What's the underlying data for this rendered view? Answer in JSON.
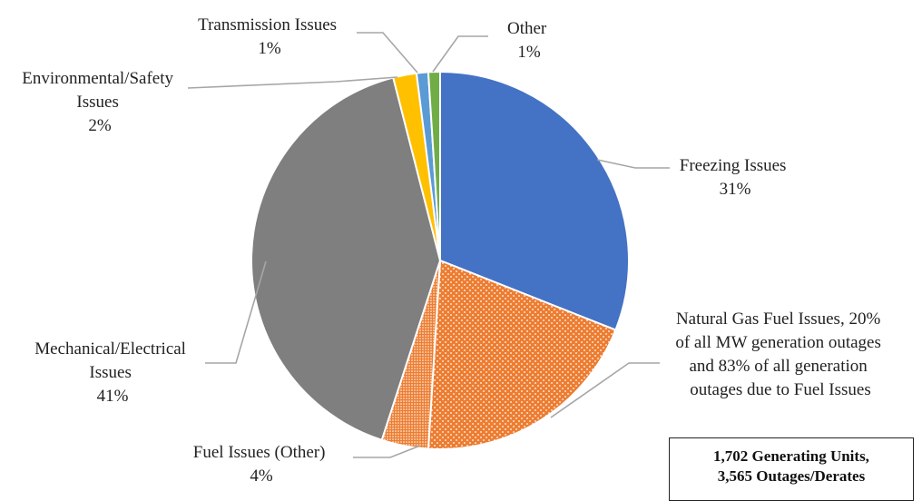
{
  "chart_data": {
    "type": "pie",
    "title": "",
    "start_angle": "12 o'clock, clockwise",
    "slices": [
      {
        "label": "Freezing Issues",
        "percent_label": "31%",
        "value": 31,
        "color": "#4472C4",
        "pattern": "solid"
      },
      {
        "label": "Natural Gas Fuel Issues, 20% of all MW generation outages and 83% of all generation outages due to Fuel Issues",
        "percent_label": "",
        "value": 20,
        "color": "#ED7D31",
        "pattern": "dotted"
      },
      {
        "label": "Fuel Issues (Other)",
        "percent_label": "4%",
        "value": 4,
        "color": "#ED7D31",
        "pattern": "dense-dotted"
      },
      {
        "label": "Mechanical/Electrical Issues",
        "percent_label": "41%",
        "value": 41,
        "color": "#7F7F7F",
        "pattern": "solid"
      },
      {
        "label": "Environmental/Safety Issues",
        "percent_label": "2%",
        "value": 2,
        "color": "#FFC000",
        "pattern": "solid"
      },
      {
        "label": "Transmission Issues",
        "percent_label": "1%",
        "value": 1,
        "color": "#5B9BD5",
        "pattern": "solid"
      },
      {
        "label": "Other",
        "percent_label": "1%",
        "value": 1,
        "color": "#70AD47",
        "pattern": "solid"
      }
    ]
  },
  "labels": {
    "freezing": [
      "Freezing Issues",
      "31%"
    ],
    "natgas": [
      "Natural Gas Fuel Issues, 20%",
      "of all MW generation outages",
      "and 83% of all generation",
      "outages due to Fuel Issues"
    ],
    "fuelother": [
      "Fuel Issues (Other)",
      "4%"
    ],
    "mech": [
      "Mechanical/Electrical",
      "Issues",
      "41%"
    ],
    "env": [
      "Environmental/Safety",
      "Issues",
      "2%"
    ],
    "trans": [
      "Transmission Issues",
      "1%"
    ],
    "other": [
      "Other",
      "1%"
    ]
  },
  "summary_box": {
    "line1": "1,702 Generating Units,",
    "line2": "3,565 Outages/Derates"
  }
}
